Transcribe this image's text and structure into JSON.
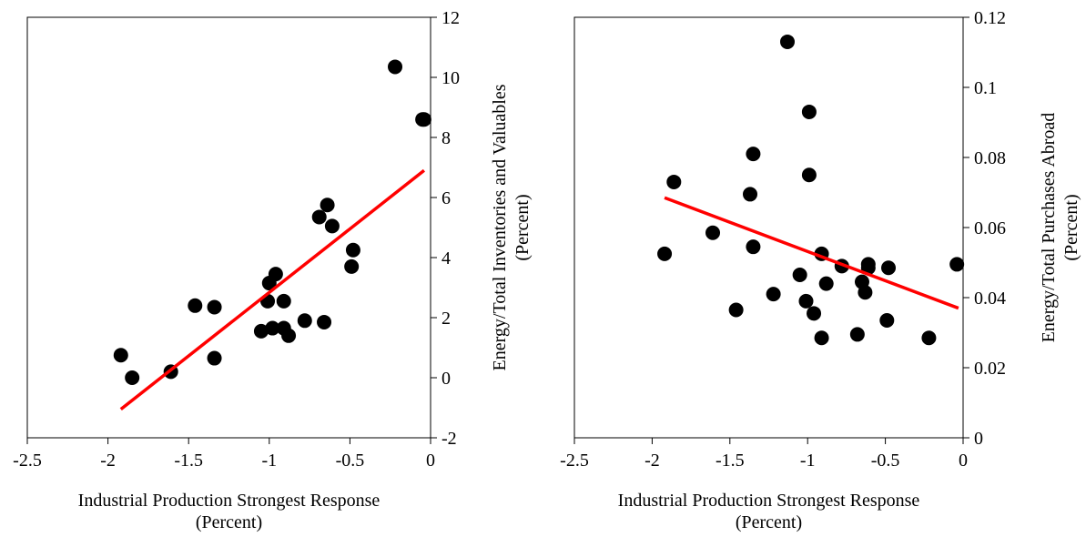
{
  "chart_data": [
    {
      "type": "scatter",
      "title": "",
      "xlabel": [
        "Industrial Production Strongest Response",
        "(Percent)"
      ],
      "ylabel": [
        "Energy/Total Inventories and Valuables",
        "(Percent)"
      ],
      "xlim": [
        -2.5,
        0
      ],
      "ylim": [
        -2,
        12
      ],
      "xticks": [
        "-2.5",
        "-2",
        "-1.5",
        "-1",
        "-0.5",
        "0"
      ],
      "yticks": [
        "-2",
        "0",
        "2",
        "4",
        "6",
        "8",
        "10",
        "12"
      ],
      "y_axis_side": "right",
      "grid": false,
      "legend": "none",
      "marker_color": "#000000",
      "fit_color": "#ff0000",
      "points": [
        {
          "x": -1.92,
          "y": 0.75
        },
        {
          "x": -1.85,
          "y": 0.0
        },
        {
          "x": -1.61,
          "y": 0.2
        },
        {
          "x": -1.46,
          "y": 2.4
        },
        {
          "x": -1.34,
          "y": 2.35
        },
        {
          "x": -1.34,
          "y": 0.65
        },
        {
          "x": -1.05,
          "y": 1.55
        },
        {
          "x": -1.01,
          "y": 2.55
        },
        {
          "x": -1.0,
          "y": 3.15
        },
        {
          "x": -0.98,
          "y": 1.65
        },
        {
          "x": -0.96,
          "y": 3.45
        },
        {
          "x": -0.91,
          "y": 2.55
        },
        {
          "x": -0.91,
          "y": 1.65
        },
        {
          "x": -0.88,
          "y": 1.4
        },
        {
          "x": -0.78,
          "y": 1.9
        },
        {
          "x": -0.69,
          "y": 5.35
        },
        {
          "x": -0.66,
          "y": 1.85
        },
        {
          "x": -0.64,
          "y": 5.75
        },
        {
          "x": -0.61,
          "y": 5.05
        },
        {
          "x": -0.49,
          "y": 3.7
        },
        {
          "x": -0.48,
          "y": 4.25
        },
        {
          "x": -0.22,
          "y": 10.35
        },
        {
          "x": -0.05,
          "y": 8.6
        },
        {
          "x": -0.04,
          "y": 8.6
        }
      ],
      "fit_line": {
        "x": [
          -1.92,
          -0.04
        ],
        "y": [
          -1.05,
          6.9
        ]
      }
    },
    {
      "type": "scatter",
      "title": "",
      "xlabel": [
        "Industrial Production Strongest Response",
        "(Percent)"
      ],
      "ylabel": [
        "Energy/Total Purchases Abroad",
        "(Percent)"
      ],
      "xlim": [
        -2.5,
        0
      ],
      "ylim": [
        0,
        0.12
      ],
      "xticks": [
        "-2.5",
        "-2",
        "-1.5",
        "-1",
        "-0.5",
        "0"
      ],
      "yticks": [
        "0",
        "0.02",
        "0.04",
        "0.06",
        "0.08",
        "0.1",
        "0.12"
      ],
      "y_axis_side": "right",
      "grid": false,
      "legend": "none",
      "marker_color": "#000000",
      "fit_color": "#ff0000",
      "points": [
        {
          "x": -1.92,
          "y": 0.0525
        },
        {
          "x": -1.86,
          "y": 0.073
        },
        {
          "x": -1.61,
          "y": 0.0585
        },
        {
          "x": -1.46,
          "y": 0.0365
        },
        {
          "x": -1.37,
          "y": 0.0695
        },
        {
          "x": -1.35,
          "y": 0.081
        },
        {
          "x": -1.35,
          "y": 0.0545
        },
        {
          "x": -1.22,
          "y": 0.041
        },
        {
          "x": -1.13,
          "y": 0.113
        },
        {
          "x": -1.05,
          "y": 0.0465
        },
        {
          "x": -1.01,
          "y": 0.039
        },
        {
          "x": -0.99,
          "y": 0.093
        },
        {
          "x": -0.99,
          "y": 0.075
        },
        {
          "x": -0.96,
          "y": 0.0355
        },
        {
          "x": -0.91,
          "y": 0.0525
        },
        {
          "x": -0.91,
          "y": 0.0285
        },
        {
          "x": -0.88,
          "y": 0.044
        },
        {
          "x": -0.78,
          "y": 0.049
        },
        {
          "x": -0.68,
          "y": 0.0295
        },
        {
          "x": -0.65,
          "y": 0.0445
        },
        {
          "x": -0.63,
          "y": 0.0415
        },
        {
          "x": -0.61,
          "y": 0.0485
        },
        {
          "x": -0.61,
          "y": 0.0495
        },
        {
          "x": -0.49,
          "y": 0.0335
        },
        {
          "x": -0.48,
          "y": 0.0485
        },
        {
          "x": -0.22,
          "y": 0.0285
        },
        {
          "x": -0.04,
          "y": 0.0495
        }
      ],
      "fit_line": {
        "x": [
          -1.92,
          -0.03
        ],
        "y": [
          0.0685,
          0.037
        ]
      }
    }
  ]
}
